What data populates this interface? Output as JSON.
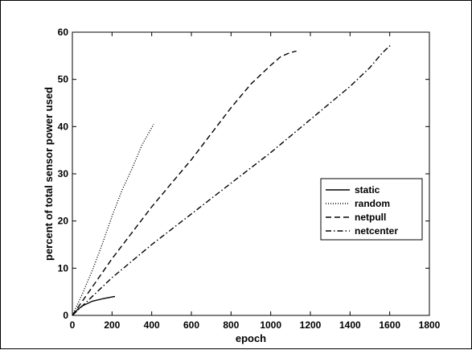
{
  "chart_data": {
    "type": "line",
    "title": "",
    "xlabel": "epoch",
    "ylabel": "percent of total sensor power used",
    "xlim": [
      0,
      1800
    ],
    "ylim": [
      0,
      60
    ],
    "xticks": [
      0,
      200,
      400,
      600,
      800,
      1000,
      1200,
      1400,
      1600,
      1800
    ],
    "yticks": [
      0,
      10,
      20,
      30,
      40,
      50,
      60
    ],
    "grid": false,
    "legend_position": "right",
    "series": [
      {
        "name": "static",
        "style": "solid",
        "points": [
          [
            0,
            0
          ],
          [
            25,
            1.2
          ],
          [
            50,
            2.0
          ],
          [
            100,
            3.0
          ],
          [
            150,
            3.5
          ],
          [
            200,
            3.9
          ],
          [
            215,
            4.0
          ]
        ]
      },
      {
        "name": "random",
        "style": "dotted",
        "points": [
          [
            0,
            0
          ],
          [
            50,
            4.5
          ],
          [
            100,
            9.5
          ],
          [
            150,
            15.0
          ],
          [
            200,
            21.0
          ],
          [
            250,
            26.5
          ],
          [
            300,
            31.0
          ],
          [
            350,
            36.0
          ],
          [
            410,
            40.5
          ]
        ]
      },
      {
        "name": "netpull",
        "style": "dashed",
        "points": [
          [
            0,
            0
          ],
          [
            100,
            6.0
          ],
          [
            200,
            12.0
          ],
          [
            300,
            17.5
          ],
          [
            400,
            23.0
          ],
          [
            500,
            28.0
          ],
          [
            600,
            33.0
          ],
          [
            700,
            38.5
          ],
          [
            800,
            44.0
          ],
          [
            900,
            49.0
          ],
          [
            1000,
            53.0
          ],
          [
            1050,
            54.8
          ],
          [
            1100,
            55.7
          ],
          [
            1130,
            56.0
          ]
        ]
      },
      {
        "name": "netcenter",
        "style": "dashdot",
        "points": [
          [
            0,
            0
          ],
          [
            200,
            8.0
          ],
          [
            400,
            15.0
          ],
          [
            600,
            21.5
          ],
          [
            800,
            28.0
          ],
          [
            1000,
            34.5
          ],
          [
            1200,
            41.5
          ],
          [
            1400,
            48.5
          ],
          [
            1500,
            52.5
          ],
          [
            1560,
            55.5
          ],
          [
            1610,
            57.5
          ]
        ]
      }
    ]
  }
}
